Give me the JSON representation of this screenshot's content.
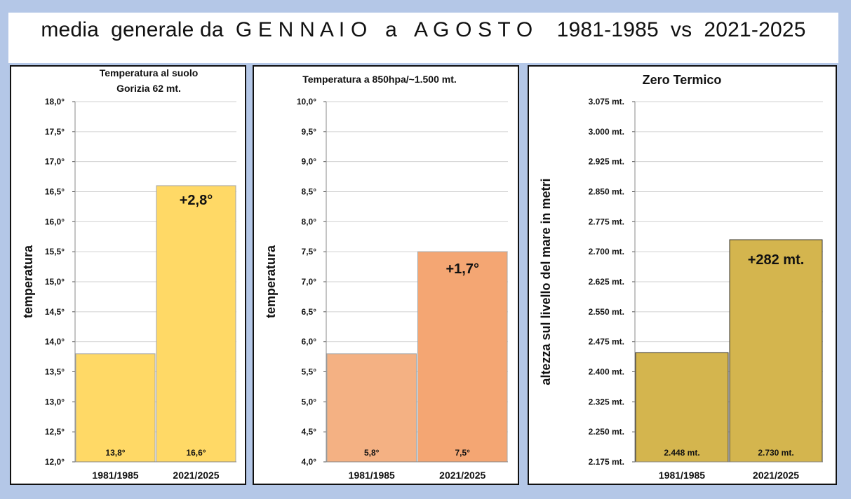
{
  "page": {
    "title": "media  generale da  G E N N A I O   a   A G O S T O    1981-1985  vs  2021-2025"
  },
  "chart_data": [
    {
      "type": "bar",
      "title": [
        "Temperatura al suolo",
        "Gorizia 62 mt."
      ],
      "ylabel": "temperatura",
      "categories": [
        "1981/1985",
        "2021/2025"
      ],
      "values": [
        13.8,
        16.6
      ],
      "value_labels": [
        "13,8°",
        "16,6°"
      ],
      "annotation": "+2,8°",
      "ylim": [
        12.0,
        18.0
      ],
      "yticks": [
        "12,0°",
        "12,5°",
        "13,0°",
        "13,5°",
        "14,0°",
        "14,5°",
        "15,0°",
        "15,5°",
        "16,0°",
        "16,5°",
        "17,0°",
        "17,5°",
        "18,0°"
      ],
      "grid": true,
      "colors": [
        "#ffd966",
        "#ffd966"
      ]
    },
    {
      "type": "bar",
      "title": [
        "Temperatura a 850hpa/~1.500 mt."
      ],
      "ylabel": "temperatura",
      "categories": [
        "1981/1985",
        "2021/2025"
      ],
      "values": [
        5.8,
        7.5
      ],
      "value_labels": [
        "5,8°",
        "7,5°"
      ],
      "annotation": "+1,7°",
      "ylim": [
        4.0,
        10.0
      ],
      "yticks": [
        "4,0°",
        "4,5°",
        "5,0°",
        "5,5°",
        "6,0°",
        "6,5°",
        "7,0°",
        "7,5°",
        "8,0°",
        "8,5°",
        "9,0°",
        "9,5°",
        "10,0°"
      ],
      "grid": true,
      "colors": [
        "#f4b183",
        "#f4a673"
      ]
    },
    {
      "type": "bar",
      "title": [
        "Zero Termico"
      ],
      "ylabel": "altezza  sul  livello  del  mare  in  metri",
      "categories": [
        "1981/1985",
        "2021/2025"
      ],
      "values": [
        2448,
        2730
      ],
      "value_labels": [
        "2.448 mt.",
        "2.730 mt."
      ],
      "annotation": "+282 mt.",
      "ylim": [
        2175,
        3075
      ],
      "yticks": [
        "2.175 mt.",
        "2.250 mt.",
        "2.325 mt.",
        "2.400 mt.",
        "2.475 mt.",
        "2.550 mt.",
        "2.625 mt.",
        "2.700 mt.",
        "2.775 mt.",
        "2.850 mt.",
        "2.925 mt.",
        "3.000 mt.",
        "3.075 mt."
      ],
      "grid": true,
      "colors": [
        "#d4b54e",
        "#d4b54e"
      ]
    }
  ]
}
